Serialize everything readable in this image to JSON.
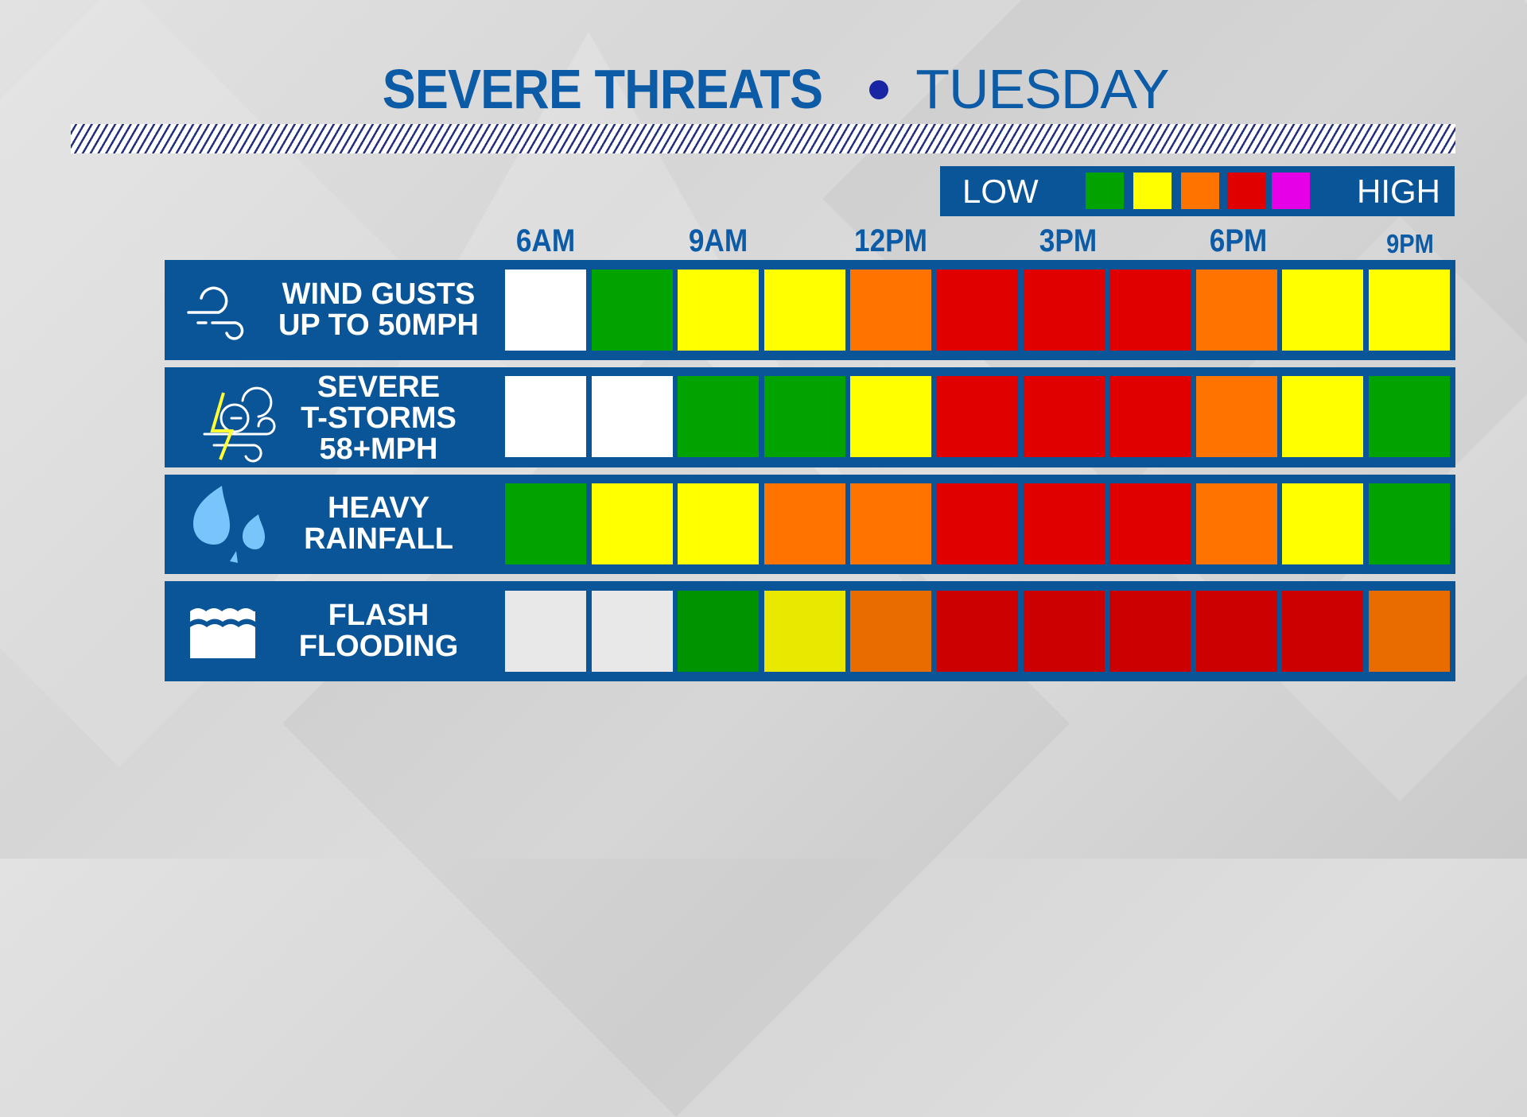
{
  "title": {
    "main": "SEVERE THREATS",
    "separator": "•",
    "day": "TUESDAY",
    "color_main": "#0c5ba6",
    "color_dot": "#1a25a3"
  },
  "legend": {
    "low_label": "LOW",
    "high_label": "HIGH",
    "levels": [
      {
        "name": "low",
        "color": "#00a300"
      },
      {
        "name": "marginal",
        "color": "#ffff00"
      },
      {
        "name": "moderate",
        "color": "#ff7300"
      },
      {
        "name": "high",
        "color": "#e00000"
      },
      {
        "name": "extreme",
        "color": "#e600e6"
      }
    ]
  },
  "times": [
    "6AM",
    "9AM",
    "12PM",
    "3PM",
    "6PM",
    "9PM"
  ],
  "rows": [
    {
      "icon": "wind-icon",
      "lines": [
        "WIND GUSTS",
        "UP TO 50MPH"
      ]
    },
    {
      "icon": "thunderstorm-wind-icon",
      "lines": [
        "SEVERE",
        "T-STORMS",
        "58+MPH"
      ]
    },
    {
      "icon": "raindrops-icon",
      "lines": [
        "HEAVY",
        "RAINFALL"
      ]
    },
    {
      "icon": "flood-water-icon",
      "lines": [
        "FLASH",
        "FLOODING"
      ]
    }
  ],
  "chart_data": {
    "type": "heatmap",
    "title": "SEVERE THREATS • TUESDAY",
    "x_labels_shown": [
      "6AM",
      "9AM",
      "12PM",
      "3PM",
      "6PM",
      "9PM"
    ],
    "x": [
      "6AM",
      "7:30AM",
      "9AM",
      "10:30AM",
      "12PM",
      "1:30PM",
      "3PM",
      "4:30PM",
      "6PM",
      "7:30PM",
      "9PM"
    ],
    "y": [
      "WIND GUSTS UP TO 50MPH",
      "SEVERE T-STORMS 58+MPH",
      "HEAVY RAINFALL",
      "FLASH FLOODING"
    ],
    "scale": [
      "none",
      "low",
      "marginal",
      "moderate",
      "high",
      "extreme"
    ],
    "scale_colors": {
      "none": "#ffffff",
      "low": "#00a300",
      "marginal": "#ffff00",
      "moderate": "#ff7300",
      "high": "#e00000",
      "extreme": "#e600e6"
    },
    "legend": {
      "left": "LOW",
      "right": "HIGH",
      "position": "top-right"
    },
    "series": [
      {
        "name": "WIND GUSTS UP TO 50MPH",
        "values": [
          "none",
          "low",
          "marginal",
          "marginal",
          "moderate",
          "high",
          "high",
          "high",
          "moderate",
          "marginal",
          "marginal"
        ]
      },
      {
        "name": "SEVERE T-STORMS 58+MPH",
        "values": [
          "none",
          "none",
          "low",
          "low",
          "marginal",
          "high",
          "high",
          "high",
          "moderate",
          "marginal",
          "low"
        ]
      },
      {
        "name": "HEAVY RAINFALL",
        "values": [
          "low",
          "marginal",
          "marginal",
          "moderate",
          "moderate",
          "high",
          "high",
          "high",
          "moderate",
          "marginal",
          "low"
        ]
      },
      {
        "name": "FLASH FLOODING",
        "values": [
          "none",
          "none",
          "low",
          "marginal",
          "moderate",
          "high",
          "high",
          "high",
          "high",
          "high",
          "moderate"
        ]
      }
    ],
    "row_colors": [
      [
        "#ffffff",
        "#00a300",
        "#ffff00",
        "#ffff00",
        "#ff7300",
        "#e00000",
        "#e00000",
        "#e00000",
        "#ff7300",
        "#ffff00",
        "#ffff00"
      ],
      [
        "#ffffff",
        "#ffffff",
        "#00a300",
        "#00a300",
        "#ffff00",
        "#e00000",
        "#e00000",
        "#e00000",
        "#ff7300",
        "#ffff00",
        "#00a300"
      ],
      [
        "#00a300",
        "#ffff00",
        "#ffff00",
        "#ff7300",
        "#ff7300",
        "#e00000",
        "#e00000",
        "#e00000",
        "#ff7300",
        "#ffff00",
        "#00a300"
      ],
      [
        "#e8e8e8",
        "#e8e8e8",
        "#009300",
        "#e8e800",
        "#e86c00",
        "#cc0000",
        "#cc0000",
        "#cc0000",
        "#cc0000",
        "#cc0000",
        "#e86c00"
      ]
    ]
  }
}
